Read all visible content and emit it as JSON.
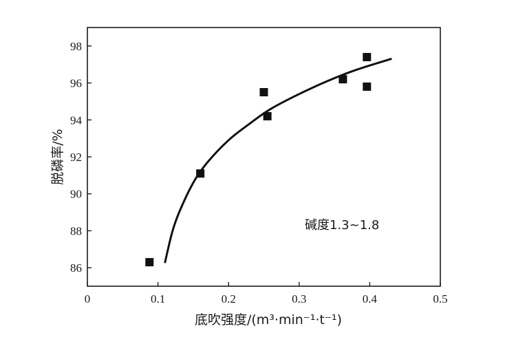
{
  "chart_data": {
    "type": "scatter",
    "xlabel": "底吹强度/(m³·min⁻¹·t⁻¹)",
    "ylabel": "脱磷率/%",
    "xlim": [
      0,
      0.5
    ],
    "ylim": [
      85,
      99
    ],
    "x_ticks": [
      "0",
      "0.1",
      "0.2",
      "0.3",
      "0.4",
      "0.5"
    ],
    "y_ticks": [
      "86",
      "88",
      "90",
      "92",
      "94",
      "96",
      "98"
    ],
    "annotation": "碱度1.3~1.8",
    "points": [
      {
        "x": 0.088,
        "y": 86.3
      },
      {
        "x": 0.16,
        "y": 91.1
      },
      {
        "x": 0.25,
        "y": 95.5
      },
      {
        "x": 0.255,
        "y": 94.2
      },
      {
        "x": 0.362,
        "y": 96.2
      },
      {
        "x": 0.396,
        "y": 97.4
      },
      {
        "x": 0.396,
        "y": 95.8
      }
    ],
    "fit_curve": [
      {
        "x": 0.11,
        "y": 86.3
      },
      {
        "x": 0.12,
        "y": 87.9
      },
      {
        "x": 0.13,
        "y": 89.0
      },
      {
        "x": 0.15,
        "y": 90.6
      },
      {
        "x": 0.17,
        "y": 91.7
      },
      {
        "x": 0.2,
        "y": 92.9
      },
      {
        "x": 0.23,
        "y": 93.8
      },
      {
        "x": 0.26,
        "y": 94.6
      },
      {
        "x": 0.3,
        "y": 95.4
      },
      {
        "x": 0.34,
        "y": 96.1
      },
      {
        "x": 0.38,
        "y": 96.7
      },
      {
        "x": 0.43,
        "y": 97.3
      }
    ],
    "grid": false,
    "legend": "none"
  }
}
